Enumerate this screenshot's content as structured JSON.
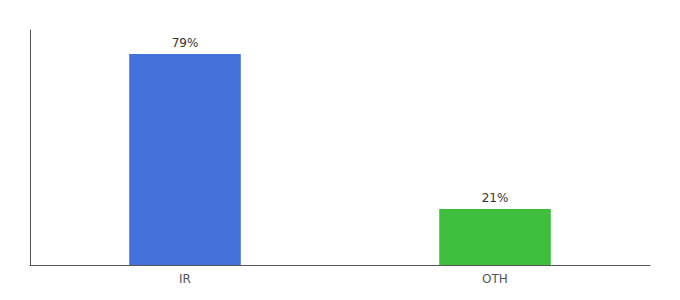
{
  "chart_data": {
    "type": "bar",
    "categories": [
      "IR",
      "OTH"
    ],
    "values": [
      79,
      21
    ],
    "value_labels": [
      "79%",
      "21%"
    ],
    "colors": [
      "#4472db",
      "#3dbf3d"
    ],
    "ylim": [
      0,
      88
    ],
    "yticks": [],
    "data_labels": true,
    "tick_labels": "x",
    "grid": false
  }
}
